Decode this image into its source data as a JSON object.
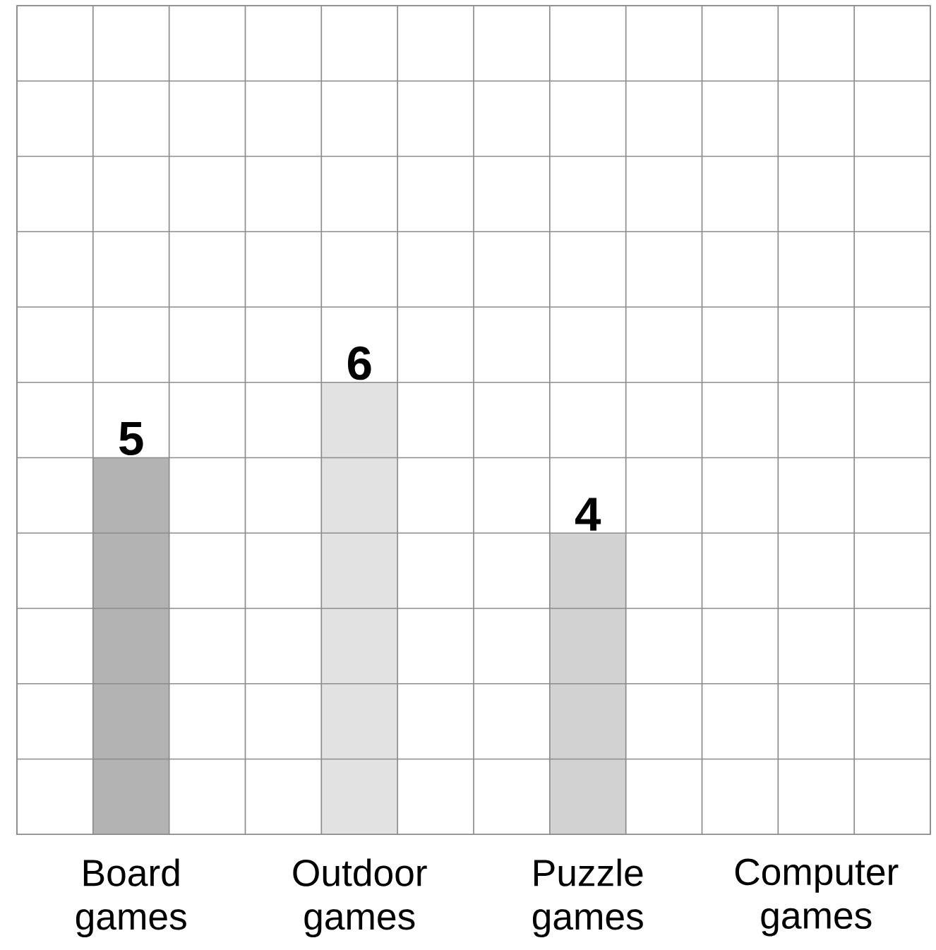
{
  "chart_data": {
    "type": "bar",
    "categories": [
      "Board games",
      "Outdoor games",
      "Puzzle games",
      "Computer games"
    ],
    "values": [
      5,
      6,
      4,
      null
    ],
    "colors": [
      "#b3b3b3",
      "#e2e2e2",
      "#d2d2d2",
      "#d2d2d2"
    ],
    "ylim": [
      0,
      11
    ],
    "yticks": [
      {
        "value": 0,
        "label": null
      },
      {
        "value": 1,
        "label": null
      },
      {
        "value": 2,
        "label": null
      },
      {
        "value": 3,
        "label": null
      },
      {
        "value": 4,
        "label": null
      },
      {
        "value": 5,
        "label": null
      },
      {
        "value": 6,
        "label": null
      },
      {
        "value": 7,
        "label": null
      },
      {
        "value": 8,
        "label": null
      },
      {
        "value": 9,
        "label": null
      },
      {
        "value": 10,
        "label": null
      },
      {
        "value": 11,
        "label": null
      }
    ],
    "grid": true,
    "tick_labels": "x",
    "data_labels": true
  }
}
